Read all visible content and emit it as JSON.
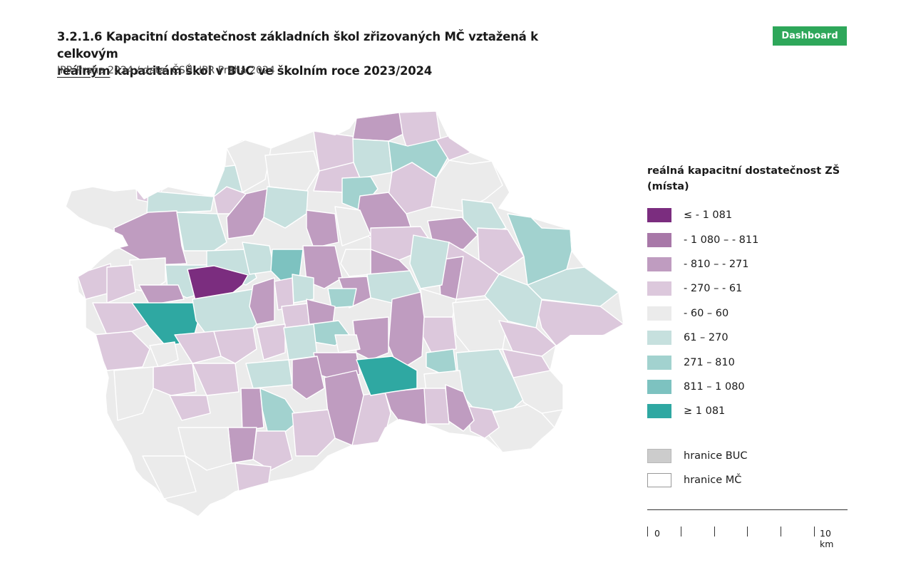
{
  "header": {
    "title_part1": "3.2.1.6 Kapacitní dostatečnost základních škol zřizovaných MČ vztažená k celkovým",
    "title_underlined": "reálným",
    "title_part2": "kapacitám škol v BUC ve školním roce 2023/2024",
    "subtitle": "IPR Praha 2024 / data: ČSÚ, IPR Praha 2024",
    "dashboard_label": "Dashboard",
    "dashboard_color": "#2ea75a"
  },
  "legend": {
    "title_line1": "reálná kapacitní dostatečnost ZŠ",
    "title_line2": "(místa)",
    "items": [
      {
        "label": "≤ - 1 081",
        "color": "#7b2d7f"
      },
      {
        "label": "- 1 080 – - 811",
        "color": "#a878a8"
      },
      {
        "label": "- 810 – - 271",
        "color": "#bf9cc0"
      },
      {
        "label": "- 270 – - 61",
        "color": "#dcc8dc"
      },
      {
        "label": "- 60 – 60",
        "color": "#ebebeb"
      },
      {
        "label": "61 – 270",
        "color": "#c6e0de"
      },
      {
        "label": "271 – 810",
        "color": "#a2d2cf"
      },
      {
        "label": "811 – 1 080",
        "color": "#7dc2c0"
      },
      {
        "label": "≥ 1 081",
        "color": "#2fa8a2"
      }
    ],
    "boundary_buc": {
      "label": "hranice BUC",
      "color": "#cccccc"
    },
    "boundary_mc": {
      "label": "hranice MČ",
      "color": "#ffffff"
    }
  },
  "scale_bar": {
    "start_label": "0",
    "end_label": "10 km"
  }
}
